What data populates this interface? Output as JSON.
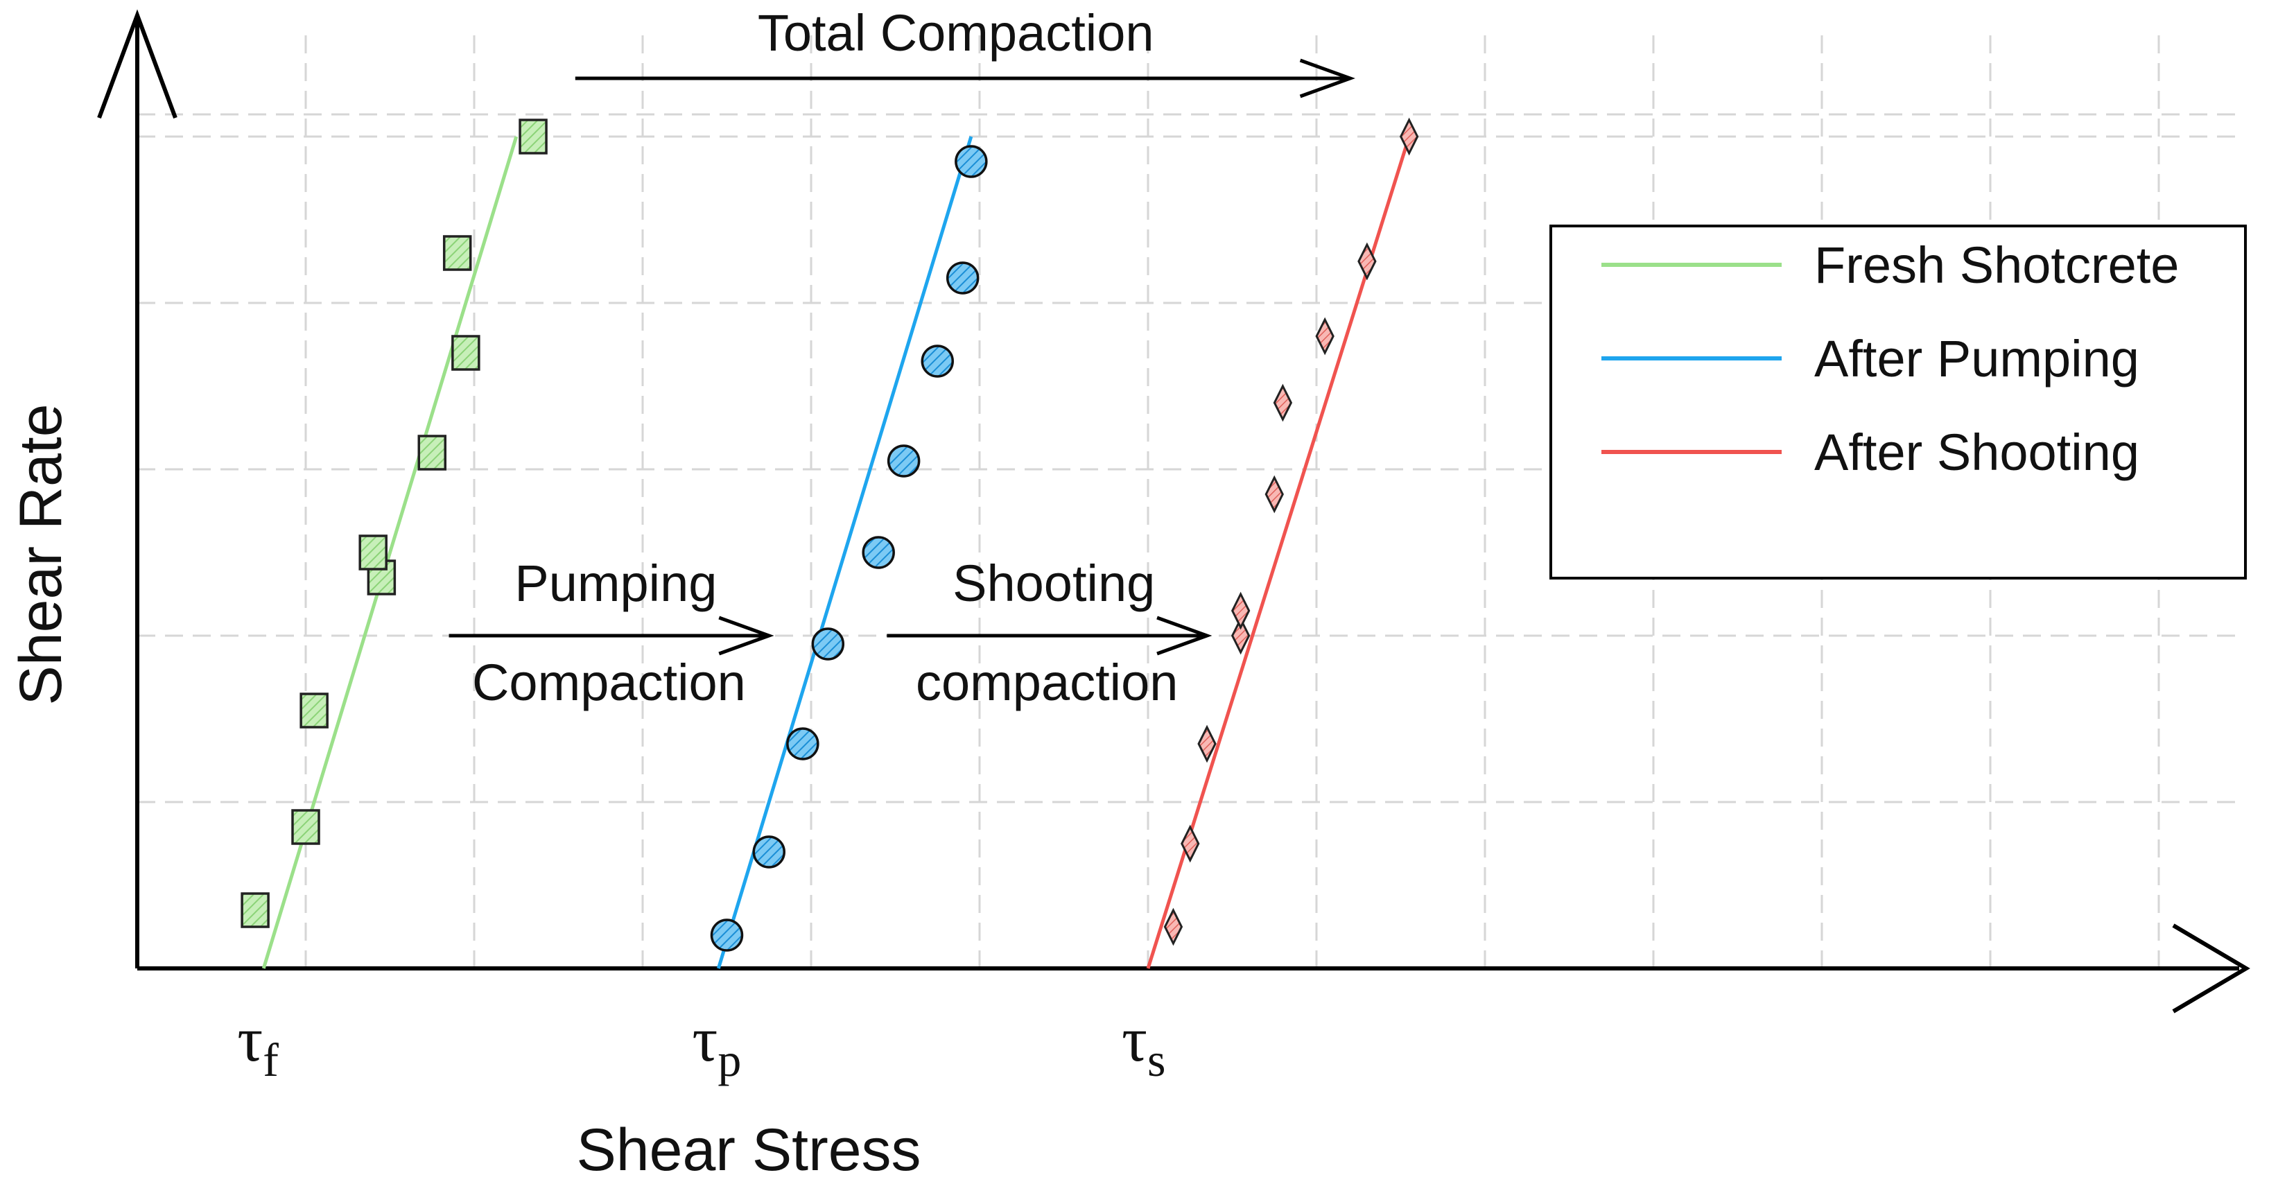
{
  "chart_data": {
    "type": "scatter",
    "title": "",
    "xlabel": "Shear Stress",
    "ylabel": "Shear Rate",
    "xlim": [
      0,
      15
    ],
    "ylim": [
      0,
      5
    ],
    "grid": true,
    "legend_position": "top-right",
    "series": [
      {
        "name": "Fresh Shotcrete",
        "color": "#9be08a",
        "marker": "square",
        "line": {
          "x0": 0.75,
          "x1": 2.25
        },
        "points": [
          {
            "x": 0.7,
            "y": 0.35
          },
          {
            "x": 1.0,
            "y": 0.85
          },
          {
            "x": 1.05,
            "y": 1.55
          },
          {
            "x": 1.45,
            "y": 2.35
          },
          {
            "x": 1.4,
            "y": 2.5
          },
          {
            "x": 1.75,
            "y": 3.1
          },
          {
            "x": 1.95,
            "y": 3.7
          },
          {
            "x": 1.9,
            "y": 4.3
          },
          {
            "x": 2.35,
            "y": 5.0
          }
        ]
      },
      {
        "name": "After Pumping",
        "color": "#1ea5ee",
        "marker": "circle",
        "line": {
          "x0": 3.45,
          "x1": 4.95
        },
        "points": [
          {
            "x": 3.5,
            "y": 0.2
          },
          {
            "x": 3.75,
            "y": 0.7
          },
          {
            "x": 3.95,
            "y": 1.35
          },
          {
            "x": 4.1,
            "y": 1.95
          },
          {
            "x": 4.4,
            "y": 2.5
          },
          {
            "x": 4.55,
            "y": 3.05
          },
          {
            "x": 4.75,
            "y": 3.65
          },
          {
            "x": 4.9,
            "y": 4.15
          },
          {
            "x": 4.95,
            "y": 4.85
          }
        ]
      },
      {
        "name": "After Shooting",
        "color": "#f0534f",
        "marker": "diamond",
        "line": {
          "x0": 6.0,
          "x1": 7.55
        },
        "points": [
          {
            "x": 6.15,
            "y": 0.25
          },
          {
            "x": 6.25,
            "y": 0.75
          },
          {
            "x": 6.35,
            "y": 1.35
          },
          {
            "x": 6.55,
            "y": 2.0
          },
          {
            "x": 6.55,
            "y": 2.15
          },
          {
            "x": 6.75,
            "y": 2.85
          },
          {
            "x": 6.8,
            "y": 3.4
          },
          {
            "x": 7.05,
            "y": 3.8
          },
          {
            "x": 7.3,
            "y": 4.25
          },
          {
            "x": 7.55,
            "y": 5.0
          }
        ]
      }
    ],
    "x_markers": [
      {
        "symbol": "τ",
        "subscript": "f",
        "x": 0.75
      },
      {
        "symbol": "τ",
        "subscript": "p",
        "x": 3.45
      },
      {
        "symbol": "τ",
        "subscript": "s",
        "x": 6.0
      }
    ],
    "annotations": [
      {
        "lines": [
          "Total Compaction"
        ],
        "from_x": 2.6,
        "to_x": 7.2,
        "y": 5.35
      },
      {
        "lines": [
          "Pumping",
          "Compaction"
        ],
        "from_x": 1.85,
        "to_x": 3.75,
        "y": 2.0
      },
      {
        "lines": [
          "Shooting",
          "compaction"
        ],
        "from_x": 4.45,
        "to_x": 6.35,
        "y": 2.0
      }
    ]
  }
}
